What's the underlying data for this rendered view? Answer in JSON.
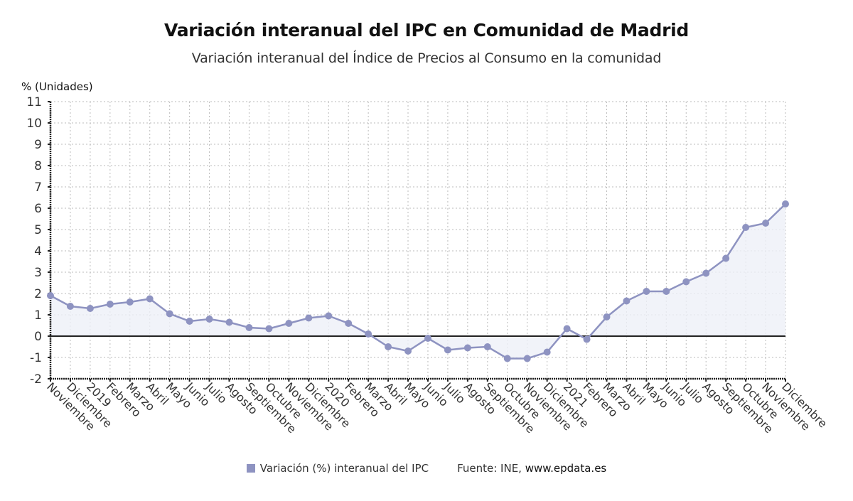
{
  "header": {
    "title": "Variación interanual del IPC en Comunidad de Madrid",
    "subtitle": "Variación interanual del Índice de Precios al Consumo en la comunidad"
  },
  "legend": {
    "series_label": "Variación (%) interanual del IPC",
    "source_prefix": "Fuente: INE, ",
    "source_site": "www.epdata.es"
  },
  "colors": {
    "line": "#8e93c1",
    "marker": "#8e93c1",
    "area": "#eef0f8",
    "zero_line": "#222222",
    "grid": "#bbbbbb"
  },
  "chart_data": {
    "type": "line",
    "title": "Variación interanual del IPC en Comunidad de Madrid",
    "subtitle": "Variación interanual del Índice de Precios al Consumo en la comunidad",
    "xlabel": "",
    "ylabel": "% (Unidades)",
    "ylim": [
      -2,
      11
    ],
    "yticks": [
      -2,
      -1,
      0,
      1,
      2,
      3,
      4,
      5,
      6,
      7,
      8,
      9,
      10,
      11
    ],
    "grid": true,
    "legend_position": "bottom",
    "categories": [
      "Noviembre",
      "Diciembre",
      "2019",
      "Febrero",
      "Marzo",
      "Abril",
      "Mayo",
      "Junio",
      "Julio",
      "Agosto",
      "Septiembre",
      "Octubre",
      "Noviembre",
      "Diciembre",
      "2020",
      "Febrero",
      "Marzo",
      "Abril",
      "Mayo",
      "Junio",
      "Julio",
      "Agosto",
      "Septiembre",
      "Octubre",
      "Noviembre",
      "Diciembre",
      "2021",
      "Febrero",
      "Marzo",
      "Abril",
      "Mayo",
      "Junio",
      "Julio",
      "Agosto",
      "Septiembre",
      "Octubre",
      "Noviembre",
      "Diciembre"
    ],
    "series": [
      {
        "name": "Variación (%) interanual del IPC",
        "values": [
          1.9,
          1.4,
          1.3,
          1.5,
          1.6,
          1.75,
          1.05,
          0.7,
          0.8,
          0.65,
          0.4,
          0.35,
          0.6,
          0.85,
          0.95,
          0.6,
          0.1,
          -0.5,
          -0.7,
          -0.1,
          -0.65,
          -0.55,
          -0.5,
          -1.05,
          -1.05,
          -0.75,
          0.35,
          -0.15,
          0.9,
          1.65,
          2.1,
          2.1,
          2.55,
          2.95,
          3.65,
          5.1,
          5.3,
          6.2
        ]
      }
    ]
  }
}
